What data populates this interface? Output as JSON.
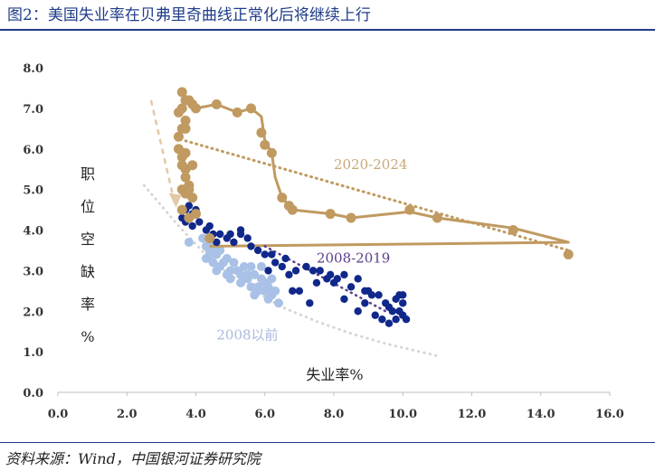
{
  "title": "图2：美国失业率在贝弗里奇曲线正常化后将继续上行",
  "source": "资料来源：Wind，中国银河证券研究院",
  "chart_data": {
    "type": "scatter",
    "xlabel": "失业率%",
    "ylabel": "职位空缺率%",
    "xlim": [
      0,
      16
    ],
    "ylim": [
      0,
      8
    ],
    "x_ticks": [
      "0.0",
      "2.0",
      "4.0",
      "6.0",
      "8.0",
      "10.0",
      "12.0",
      "14.0",
      "16.0"
    ],
    "y_ticks": [
      "0.0",
      "1.0",
      "2.0",
      "3.0",
      "4.0",
      "5.0",
      "6.0",
      "7.0",
      "8.0"
    ],
    "grid": false,
    "colors": {
      "pre2008": "#a9c1e6",
      "s2008_2019": "#10288a",
      "s2020_2024": "#c09a60",
      "label_2008_2019": "#5a3d8c",
      "curve": "#d6d6d6",
      "arrow": "#e2c9a6"
    },
    "series": [
      {
        "name": "2008以前",
        "points": [
          [
            3.8,
            3.7
          ],
          [
            4.2,
            3.8
          ],
          [
            4.4,
            3.5
          ],
          [
            4.3,
            3.3
          ],
          [
            4.5,
            3.2
          ],
          [
            4.7,
            3.1
          ],
          [
            4.6,
            3.4
          ],
          [
            4.9,
            3.3
          ],
          [
            5.0,
            3.0
          ],
          [
            5.2,
            3.0
          ],
          [
            5.3,
            2.9
          ],
          [
            5.5,
            2.8
          ],
          [
            5.4,
            3.1
          ],
          [
            5.7,
            2.9
          ],
          [
            5.9,
            2.8
          ],
          [
            6.0,
            2.7
          ],
          [
            5.8,
            2.5
          ],
          [
            6.1,
            2.6
          ],
          [
            6.2,
            2.4
          ],
          [
            6.3,
            2.5
          ],
          [
            5.6,
            2.6
          ],
          [
            5.5,
            2.9
          ],
          [
            5.1,
            3.2
          ],
          [
            4.8,
            3.2
          ],
          [
            4.5,
            3.6
          ],
          [
            4.4,
            3.4
          ],
          [
            4.9,
            2.9
          ],
          [
            5.6,
            3.1
          ],
          [
            5.8,
            2.6
          ],
          [
            6.0,
            2.5
          ],
          [
            6.4,
            2.2
          ],
          [
            6.1,
            2.3
          ],
          [
            5.7,
            2.4
          ],
          [
            5.3,
            2.7
          ],
          [
            5.0,
            2.8
          ],
          [
            4.6,
            3.0
          ],
          [
            4.3,
            3.6
          ],
          [
            4.7,
            3.5
          ],
          [
            5.9,
            3.1
          ],
          [
            6.2,
            2.8
          ]
        ]
      },
      {
        "name": "2008-2019",
        "points": [
          [
            3.6,
            4.3
          ],
          [
            3.7,
            4.5
          ],
          [
            3.8,
            4.6
          ],
          [
            3.9,
            4.8
          ],
          [
            3.7,
            4.2
          ],
          [
            3.9,
            4.4
          ],
          [
            4.0,
            4.5
          ],
          [
            3.9,
            4.1
          ],
          [
            4.1,
            4.2
          ],
          [
            4.3,
            4.0
          ],
          [
            4.5,
            3.9
          ],
          [
            4.4,
            4.1
          ],
          [
            4.7,
            3.9
          ],
          [
            4.9,
            3.8
          ],
          [
            5.1,
            3.7
          ],
          [
            5.3,
            4.0
          ],
          [
            5.0,
            3.9
          ],
          [
            4.6,
            3.7
          ],
          [
            5.6,
            3.6
          ],
          [
            5.8,
            3.5
          ],
          [
            5.5,
            3.8
          ],
          [
            6.0,
            3.4
          ],
          [
            6.2,
            3.4
          ],
          [
            6.3,
            3.2
          ],
          [
            6.1,
            3.0
          ],
          [
            6.5,
            3.1
          ],
          [
            6.7,
            2.9
          ],
          [
            6.9,
            3.0
          ],
          [
            7.0,
            2.5
          ],
          [
            7.3,
            2.2
          ],
          [
            6.8,
            2.5
          ],
          [
            7.5,
            2.7
          ],
          [
            7.8,
            2.8
          ],
          [
            7.6,
            3.0
          ],
          [
            7.9,
            2.9
          ],
          [
            8.1,
            2.8
          ],
          [
            8.3,
            2.9
          ],
          [
            8.5,
            2.6
          ],
          [
            8.7,
            2.8
          ],
          [
            8.9,
            2.5
          ],
          [
            9.0,
            2.5
          ],
          [
            9.1,
            2.4
          ],
          [
            9.3,
            2.4
          ],
          [
            9.5,
            2.2
          ],
          [
            9.6,
            2.1
          ],
          [
            9.8,
            2.3
          ],
          [
            9.9,
            2.4
          ],
          [
            10.0,
            1.9
          ],
          [
            9.6,
            1.7
          ],
          [
            9.2,
            1.9
          ],
          [
            8.9,
            2.2
          ],
          [
            8.7,
            2.0
          ],
          [
            8.3,
            2.3
          ],
          [
            9.4,
            1.8
          ],
          [
            9.7,
            2.0
          ],
          [
            10.1,
            1.8
          ],
          [
            9.8,
            1.8
          ],
          [
            10.0,
            2.2
          ],
          [
            9.9,
            2.0
          ],
          [
            10.0,
            2.4
          ],
          [
            5.3,
            3.9
          ],
          [
            6.6,
            3.3
          ],
          [
            7.2,
            3.1
          ],
          [
            7.4,
            3.0
          ],
          [
            8.0,
            2.7
          ]
        ]
      },
      {
        "name": "2020-2024",
        "points": [
          [
            3.5,
            6.3
          ],
          [
            3.5,
            6.0
          ],
          [
            3.6,
            5.8
          ],
          [
            3.6,
            5.6
          ],
          [
            3.7,
            5.9
          ],
          [
            3.6,
            6.5
          ],
          [
            3.7,
            6.7
          ],
          [
            3.6,
            7.0
          ],
          [
            3.5,
            6.9
          ],
          [
            3.7,
            7.2
          ],
          [
            3.6,
            7.4
          ],
          [
            3.8,
            7.2
          ],
          [
            3.9,
            7.1
          ],
          [
            4.0,
            7.0
          ],
          [
            4.6,
            7.1
          ],
          [
            5.2,
            6.9
          ],
          [
            5.6,
            7.0
          ],
          [
            5.9,
            6.4
          ],
          [
            6.0,
            6.1
          ],
          [
            6.2,
            5.9
          ],
          [
            6.5,
            4.8
          ],
          [
            6.7,
            4.6
          ],
          [
            6.8,
            4.5
          ],
          [
            7.9,
            4.4
          ],
          [
            8.5,
            4.3
          ],
          [
            10.2,
            4.5
          ],
          [
            11.0,
            4.3
          ],
          [
            13.2,
            4.0
          ],
          [
            14.8,
            3.4
          ],
          [
            3.7,
            6.5
          ],
          [
            3.7,
            5.5
          ],
          [
            3.6,
            5.0
          ],
          [
            3.7,
            5.3
          ],
          [
            3.8,
            5.1
          ],
          [
            3.9,
            5.6
          ],
          [
            3.8,
            5.0
          ],
          [
            3.9,
            4.8
          ],
          [
            4.0,
            4.4
          ],
          [
            3.8,
            4.3
          ],
          [
            3.6,
            4.5
          ],
          [
            3.7,
            4.9
          ],
          [
            4.4,
            3.8
          ]
        ],
        "path": [
          [
            3.6,
            7.0
          ],
          [
            3.7,
            7.3
          ],
          [
            4.0,
            7.0
          ],
          [
            4.6,
            7.1
          ],
          [
            5.2,
            6.9
          ],
          [
            5.6,
            7.0
          ],
          [
            5.9,
            6.8
          ],
          [
            6.0,
            6.2
          ],
          [
            6.2,
            5.9
          ],
          [
            6.3,
            5.3
          ],
          [
            6.5,
            4.8
          ],
          [
            6.8,
            4.5
          ],
          [
            7.9,
            4.4
          ],
          [
            8.5,
            4.3
          ],
          [
            10.2,
            4.45
          ],
          [
            11.0,
            4.3
          ],
          [
            13.2,
            4.05
          ],
          [
            14.8,
            3.7
          ],
          [
            4.4,
            3.6
          ]
        ],
        "trend": [
          [
            3.7,
            6.2
          ],
          [
            14.8,
            3.5
          ]
        ]
      }
    ],
    "fit_curve": [
      [
        2.5,
        5.1
      ],
      [
        3.5,
        4.1
      ],
      [
        4.5,
        3.2
      ],
      [
        5.5,
        2.6
      ],
      [
        6.5,
        2.1
      ],
      [
        7.5,
        1.75
      ],
      [
        8.5,
        1.45
      ],
      [
        9.5,
        1.2
      ],
      [
        10.5,
        1.0
      ],
      [
        11.0,
        0.9
      ]
    ],
    "trend_2008_2019": [
      [
        6.0,
        3.6
      ],
      [
        9.5,
        2.0
      ]
    ],
    "arrow": [
      [
        2.7,
        7.2
      ],
      [
        3.4,
        4.6
      ]
    ],
    "annotations": [
      {
        "text": "2020-2024",
        "x": 8.0,
        "y": 5.5,
        "series": "2020-2024"
      },
      {
        "text": "2008-2019",
        "x": 7.5,
        "y": 3.2,
        "series": "2008-2019"
      },
      {
        "text": "2008以前",
        "x": 4.6,
        "y": 1.3,
        "series": "2008以前"
      }
    ]
  }
}
